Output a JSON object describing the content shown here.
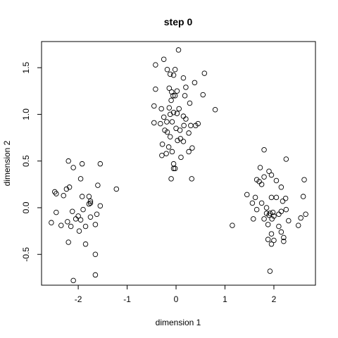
{
  "chart_data": {
    "type": "scatter",
    "title": "step 0",
    "xlabel": "dimension 1",
    "ylabel": "dimension 2",
    "xlim": [
      -2.75,
      2.85
    ],
    "ylim": [
      -0.83,
      1.78
    ],
    "xticks": [
      -2,
      -1,
      0,
      1,
      2
    ],
    "yticks": [
      -0.5,
      0.0,
      0.5,
      1.0,
      1.5
    ],
    "xtick_labels": [
      "-2",
      "-1",
      "0",
      "1",
      "2"
    ],
    "ytick_labels": [
      "-0.5",
      "0.0",
      "0.5",
      "1.0",
      "1.5"
    ],
    "grid": false,
    "legend": "none",
    "points": [
      [
        -0.25,
        1.59
      ],
      [
        0.05,
        1.69
      ],
      [
        -0.42,
        1.53
      ],
      [
        0.58,
        1.44
      ],
      [
        -0.02,
        1.48
      ],
      [
        -0.18,
        1.48
      ],
      [
        -0.12,
        1.43
      ],
      [
        -0.05,
        1.42
      ],
      [
        0.15,
        1.39
      ],
      [
        0.38,
        1.34
      ],
      [
        -0.42,
        1.27
      ],
      [
        -0.14,
        1.28
      ],
      [
        -0.09,
        1.24
      ],
      [
        0.02,
        1.25
      ],
      [
        -0.06,
        1.2
      ],
      [
        -0.02,
        1.2
      ],
      [
        0.2,
        1.29
      ],
      [
        0.18,
        1.2
      ],
      [
        0.55,
        1.21
      ],
      [
        -0.1,
        1.15
      ],
      [
        -0.45,
        1.09
      ],
      [
        -0.3,
        1.06
      ],
      [
        -0.14,
        1.07
      ],
      [
        0.06,
        1.06
      ],
      [
        0.28,
        1.12
      ],
      [
        0.8,
        1.05
      ],
      [
        -0.05,
        1.02
      ],
      [
        -0.12,
        1.0
      ],
      [
        0.02,
        1.01
      ],
      [
        0.15,
        0.98
      ],
      [
        0.2,
        0.95
      ],
      [
        -0.25,
        0.97
      ],
      [
        -0.08,
        0.92
      ],
      [
        -0.45,
        0.91
      ],
      [
        -0.32,
        0.9
      ],
      [
        -0.19,
        0.92
      ],
      [
        0.45,
        0.9
      ],
      [
        0.4,
        0.88
      ],
      [
        0.3,
        0.88
      ],
      [
        0.16,
        0.88
      ],
      [
        -0.23,
        0.83
      ],
      [
        -0.18,
        0.81
      ],
      [
        0.0,
        0.85
      ],
      [
        0.08,
        0.83
      ],
      [
        0.26,
        0.8
      ],
      [
        -0.12,
        0.76
      ],
      [
        0.03,
        0.72
      ],
      [
        0.09,
        0.74
      ],
      [
        0.15,
        0.71
      ],
      [
        -0.28,
        0.68
      ],
      [
        0.33,
        0.64
      ],
      [
        -0.15,
        0.65
      ],
      [
        0.26,
        0.6
      ],
      [
        -0.08,
        0.6
      ],
      [
        -0.2,
        0.58
      ],
      [
        -0.29,
        0.56
      ],
      [
        0.1,
        0.54
      ],
      [
        -0.05,
        0.47
      ],
      [
        -0.02,
        0.42
      ],
      [
        -0.05,
        0.42
      ],
      [
        -0.1,
        0.31
      ],
      [
        0.32,
        0.31
      ],
      [
        -2.2,
        0.5
      ],
      [
        -1.92,
        0.47
      ],
      [
        -1.55,
        0.47
      ],
      [
        -2.1,
        0.43
      ],
      [
        -1.95,
        0.31
      ],
      [
        -1.6,
        0.24
      ],
      [
        -2.18,
        0.22
      ],
      [
        -2.24,
        0.2
      ],
      [
        -1.22,
        0.2
      ],
      [
        -2.48,
        0.17
      ],
      [
        -2.45,
        0.15
      ],
      [
        -1.92,
        0.12
      ],
      [
        -1.78,
        0.12
      ],
      [
        -2.3,
        0.13
      ],
      [
        -1.75,
        0.07
      ],
      [
        -1.75,
        0.05
      ],
      [
        -1.78,
        0.04
      ],
      [
        -1.55,
        0.02
      ],
      [
        -2.45,
        -0.05
      ],
      [
        -2.12,
        -0.04
      ],
      [
        -1.9,
        -0.02
      ],
      [
        -1.62,
        -0.07
      ],
      [
        -1.75,
        -0.1
      ],
      [
        -2.0,
        -0.09
      ],
      [
        -2.05,
        -0.12
      ],
      [
        -1.95,
        -0.13
      ],
      [
        -2.22,
        -0.15
      ],
      [
        -2.55,
        -0.16
      ],
      [
        -2.35,
        -0.19
      ],
      [
        -1.65,
        -0.18
      ],
      [
        -1.85,
        -0.2
      ],
      [
        -2.15,
        -0.2
      ],
      [
        -1.98,
        -0.25
      ],
      [
        -2.2,
        -0.37
      ],
      [
        -1.85,
        -0.39
      ],
      [
        -1.65,
        -0.5
      ],
      [
        -1.65,
        -0.72
      ],
      [
        -2.1,
        -0.78
      ],
      [
        1.8,
        0.62
      ],
      [
        2.25,
        0.52
      ],
      [
        1.72,
        0.43
      ],
      [
        1.9,
        0.39
      ],
      [
        1.95,
        0.35
      ],
      [
        1.8,
        0.33
      ],
      [
        1.65,
        0.3
      ],
      [
        1.7,
        0.28
      ],
      [
        2.62,
        0.3
      ],
      [
        2.05,
        0.29
      ],
      [
        1.75,
        0.25
      ],
      [
        2.15,
        0.22
      ],
      [
        1.45,
        0.14
      ],
      [
        1.95,
        0.11
      ],
      [
        2.05,
        0.11
      ],
      [
        1.62,
        0.11
      ],
      [
        2.24,
        0.1
      ],
      [
        2.18,
        0.07
      ],
      [
        2.6,
        0.12
      ],
      [
        1.75,
        0.05
      ],
      [
        1.56,
        0.05
      ],
      [
        1.85,
        0.0
      ],
      [
        1.65,
        -0.02
      ],
      [
        2.25,
        -0.02
      ],
      [
        2.15,
        -0.04
      ],
      [
        1.98,
        -0.05
      ],
      [
        1.92,
        -0.06
      ],
      [
        1.85,
        -0.06
      ],
      [
        2.65,
        -0.07
      ],
      [
        2.1,
        -0.07
      ],
      [
        1.9,
        -0.08
      ],
      [
        2.0,
        -0.09
      ],
      [
        2.55,
        -0.11
      ],
      [
        1.96,
        -0.12
      ],
      [
        1.8,
        -0.12
      ],
      [
        1.58,
        -0.12
      ],
      [
        2.3,
        -0.14
      ],
      [
        1.88,
        -0.18
      ],
      [
        2.1,
        -0.2
      ],
      [
        2.5,
        -0.19
      ],
      [
        1.15,
        -0.19
      ],
      [
        2.15,
        -0.26
      ],
      [
        1.95,
        -0.28
      ],
      [
        2.2,
        -0.32
      ],
      [
        1.88,
        -0.34
      ],
      [
        2.0,
        -0.35
      ],
      [
        2.2,
        -0.36
      ],
      [
        1.95,
        -0.39
      ],
      [
        1.92,
        -0.68
      ]
    ]
  }
}
